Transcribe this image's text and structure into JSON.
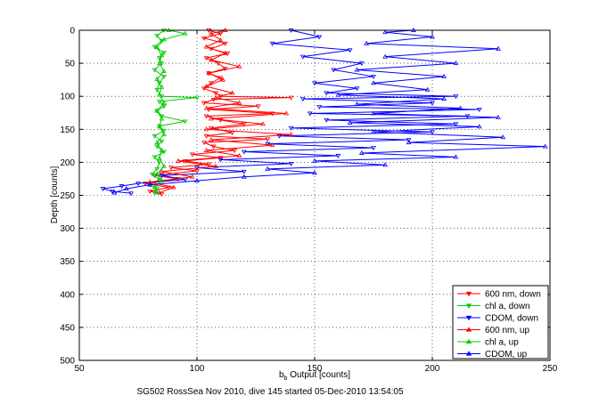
{
  "chart_data": {
    "type": "line",
    "xlabel_main": "b",
    "xlabel_sub": "b",
    "xlabel_rest": " Output [counts]",
    "ylabel": "Depth [counts]",
    "caption": "SG502 RossSea Nov 2010, dive 145 started 05-Dec-2010 13:54:05",
    "xlim": [
      50,
      250
    ],
    "ylim": [
      0,
      500
    ],
    "y_reversed": true,
    "grid": true,
    "x_ticks": [
      50,
      100,
      150,
      200,
      250
    ],
    "y_ticks": [
      0,
      50,
      100,
      150,
      200,
      250,
      300,
      350,
      400,
      450,
      500
    ],
    "legend_position": "bottom-right",
    "series": [
      {
        "name": "600 nm, down",
        "color": "#ff0000",
        "marker": "triangle-down",
        "points": [
          [
            105,
            0
          ],
          [
            110,
            5
          ],
          [
            103,
            12
          ],
          [
            112,
            20
          ],
          [
            106,
            28
          ],
          [
            113,
            35
          ],
          [
            104,
            42
          ],
          [
            109,
            50
          ],
          [
            112,
            58
          ],
          [
            105,
            65
          ],
          [
            110,
            72
          ],
          [
            106,
            80
          ],
          [
            103,
            88
          ],
          [
            108,
            95
          ],
          [
            110,
            100
          ],
          [
            140,
            102
          ],
          [
            107,
            105
          ],
          [
            103,
            110
          ],
          [
            126,
            115
          ],
          [
            105,
            120
          ],
          [
            132,
            126
          ],
          [
            104,
            130
          ],
          [
            110,
            136
          ],
          [
            120,
            142
          ],
          [
            106,
            148
          ],
          [
            115,
            155
          ],
          [
            104,
            160
          ],
          [
            130,
            165
          ],
          [
            103,
            170
          ],
          [
            107,
            176
          ],
          [
            116,
            182
          ],
          [
            98,
            188
          ],
          [
            110,
            193
          ],
          [
            95,
            198
          ],
          [
            105,
            203
          ],
          [
            89,
            208
          ],
          [
            100,
            213
          ],
          [
            82,
            220
          ],
          [
            92,
            225
          ],
          [
            78,
            232
          ],
          [
            88,
            238
          ],
          [
            80,
            244
          ],
          [
            85,
            248
          ]
        ]
      },
      {
        "name": "chl a, down",
        "color": "#00cc00",
        "marker": "triangle-down",
        "points": [
          [
            86,
            0
          ],
          [
            83,
            8
          ],
          [
            85,
            16
          ],
          [
            82,
            25
          ],
          [
            86,
            34
          ],
          [
            84,
            42
          ],
          [
            85,
            50
          ],
          [
            82,
            60
          ],
          [
            86,
            70
          ],
          [
            84,
            80
          ],
          [
            83,
            90
          ],
          [
            85,
            100
          ],
          [
            100,
            102
          ],
          [
            84,
            108
          ],
          [
            86,
            115
          ],
          [
            83,
            122
          ],
          [
            85,
            130
          ],
          [
            95,
            138
          ],
          [
            84,
            145
          ],
          [
            86,
            152
          ],
          [
            82,
            160
          ],
          [
            85,
            168
          ],
          [
            83,
            176
          ],
          [
            86,
            184
          ],
          [
            82,
            192
          ],
          [
            84,
            200
          ],
          [
            83,
            210
          ],
          [
            81,
            218
          ],
          [
            84,
            226
          ],
          [
            80,
            234
          ],
          [
            83,
            240
          ],
          [
            82,
            246
          ]
        ]
      },
      {
        "name": "CDOM, down",
        "color": "#0000ff",
        "marker": "triangle-down",
        "points": [
          [
            140,
            0
          ],
          [
            152,
            10
          ],
          [
            132,
            20
          ],
          [
            165,
            30
          ],
          [
            145,
            40
          ],
          [
            170,
            50
          ],
          [
            158,
            60
          ],
          [
            175,
            70
          ],
          [
            150,
            80
          ],
          [
            168,
            88
          ],
          [
            155,
            95
          ],
          [
            210,
            100
          ],
          [
            145,
            104
          ],
          [
            200,
            110
          ],
          [
            152,
            116
          ],
          [
            220,
            120
          ],
          [
            148,
            126
          ],
          [
            215,
            130
          ],
          [
            155,
            136
          ],
          [
            210,
            142
          ],
          [
            140,
            148
          ],
          [
            200,
            154
          ],
          [
            135,
            160
          ],
          [
            190,
            166
          ],
          [
            130,
            172
          ],
          [
            175,
            178
          ],
          [
            120,
            184
          ],
          [
            160,
            190
          ],
          [
            110,
            196
          ],
          [
            140,
            202
          ],
          [
            100,
            208
          ],
          [
            120,
            214
          ],
          [
            85,
            220
          ],
          [
            95,
            226
          ],
          [
            75,
            232
          ],
          [
            68,
            236
          ],
          [
            60,
            240
          ],
          [
            64,
            244
          ],
          [
            72,
            247
          ]
        ]
      },
      {
        "name": "600 nm, up",
        "color": "#ff0000",
        "marker": "triangle-up",
        "points": [
          [
            84,
            246
          ],
          [
            90,
            238
          ],
          [
            80,
            230
          ],
          [
            98,
            222
          ],
          [
            85,
            214
          ],
          [
            108,
            206
          ],
          [
            92,
            198
          ],
          [
            118,
            190
          ],
          [
            104,
            182
          ],
          [
            132,
            174
          ],
          [
            106,
            166
          ],
          [
            140,
            158
          ],
          [
            104,
            150
          ],
          [
            128,
            142
          ],
          [
            106,
            134
          ],
          [
            138,
            126
          ],
          [
            104,
            118
          ],
          [
            118,
            110
          ],
          [
            108,
            102
          ],
          [
            115,
            95
          ],
          [
            104,
            85
          ],
          [
            111,
            75
          ],
          [
            105,
            65
          ],
          [
            118,
            55
          ],
          [
            106,
            45
          ],
          [
            112,
            35
          ],
          [
            104,
            25
          ],
          [
            110,
            15
          ],
          [
            106,
            5
          ],
          [
            112,
            0
          ]
        ]
      },
      {
        "name": "chl a, up",
        "color": "#00cc00",
        "marker": "triangle-up",
        "points": [
          [
            83,
            246
          ],
          [
            82,
            238
          ],
          [
            85,
            228
          ],
          [
            83,
            218
          ],
          [
            86,
            206
          ],
          [
            84,
            194
          ],
          [
            85,
            182
          ],
          [
            83,
            170
          ],
          [
            86,
            158
          ],
          [
            84,
            146
          ],
          [
            85,
            134
          ],
          [
            83,
            122
          ],
          [
            86,
            110
          ],
          [
            84,
            98
          ],
          [
            85,
            86
          ],
          [
            83,
            74
          ],
          [
            86,
            62
          ],
          [
            84,
            50
          ],
          [
            85,
            38
          ],
          [
            83,
            26
          ],
          [
            86,
            14
          ],
          [
            95,
            5
          ],
          [
            88,
            0
          ]
        ]
      },
      {
        "name": "CDOM, up",
        "color": "#0000ff",
        "marker": "triangle-up",
        "points": [
          [
            65,
            246
          ],
          [
            70,
            240
          ],
          [
            80,
            234
          ],
          [
            100,
            228
          ],
          [
            120,
            222
          ],
          [
            150,
            216
          ],
          [
            130,
            210
          ],
          [
            180,
            204
          ],
          [
            150,
            198
          ],
          [
            210,
            192
          ],
          [
            170,
            186
          ],
          [
            248,
            176
          ],
          [
            190,
            170
          ],
          [
            230,
            162
          ],
          [
            175,
            154
          ],
          [
            220,
            146
          ],
          [
            165,
            140
          ],
          [
            228,
            132
          ],
          [
            175,
            126
          ],
          [
            212,
            118
          ],
          [
            168,
            112
          ],
          [
            205,
            104
          ],
          [
            160,
            98
          ],
          [
            198,
            90
          ],
          [
            175,
            80
          ],
          [
            205,
            70
          ],
          [
            168,
            60
          ],
          [
            210,
            50
          ],
          [
            180,
            40
          ],
          [
            228,
            28
          ],
          [
            172,
            20
          ],
          [
            200,
            10
          ],
          [
            180,
            3
          ],
          [
            192,
            0
          ]
        ]
      }
    ]
  }
}
